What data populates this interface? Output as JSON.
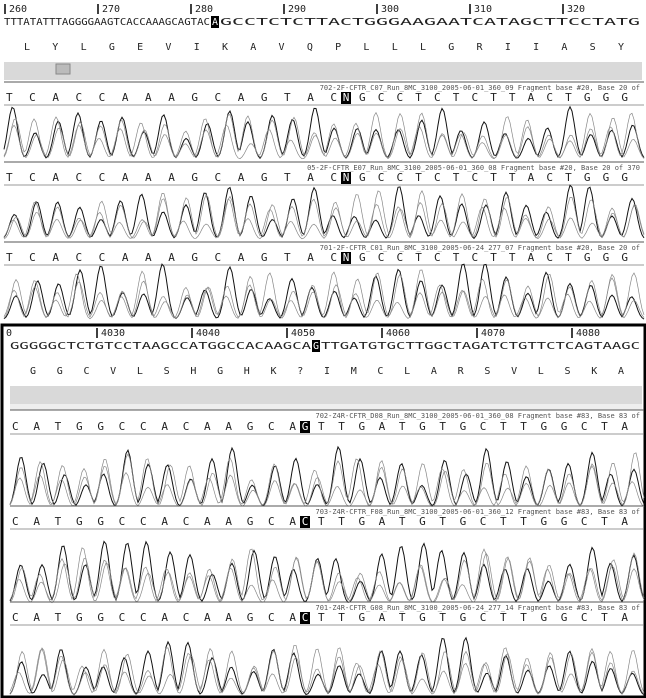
{
  "panels": [
    {
      "ruler": [
        "260",
        "270",
        "280",
        "290",
        "300",
        "310",
        "320"
      ],
      "reference_before": "TTTATATTTAGGGGAAGTCACCAAAGCAGTAC",
      "reference_highlight": "A",
      "reference_after": "GCCTCTCTTACTGGGAAGAATCATAGCTTCCTATG",
      "translation": "L Y L G E V I K A V Q P L L L G R I I A S Y",
      "traces": [
        {
          "label": "702-2F-CFTR_C07_Run_8MC_3100_2005-06-01_360_09 Fragment base #20, Base 20 of",
          "calls_before": "TCACCAAAGCAGTAC",
          "highlight": "N",
          "calls_after": "GCCTCTCTTACTGGG"
        },
        {
          "label": "05-2F-CFTR_E07_Run_8MC_3100_2005-06-01_360_08 Fragment base #20, Base 20 of 370",
          "calls_before": "TCACCAAAGCAGTAC",
          "highlight": "N",
          "calls_after": "GCCTCTCTTACTGGG"
        },
        {
          "label": "701-2F-CFTR_C01_Run_8MC_3100_2005-06-24_277_07 Fragment base #20, Base 20 of",
          "calls_before": "TCACCAAAGCAGTAC",
          "highlight": "N",
          "calls_after": "GCCTCTCTTACTGGG"
        }
      ]
    },
    {
      "ruler": [
        "0",
        "4030",
        "4040",
        "4050",
        "4060",
        "4070",
        "4080"
      ],
      "reference_before": "GGGGGCTCTGTCCTAAGCCATGGCCACAAGCA",
      "reference_highlight": "G",
      "reference_after": "TTGATGTGCTTGGCTAGATCTGTTCTCAGTAAGC",
      "translation": "G G C V L S H G H K ? I M C L A R S V L S K A",
      "traces": [
        {
          "label": "702-Z4R-CFTR_D08_Run_8MC_3100_2005-06-01_360_08 Fragment base #83, Base 83 of",
          "calls_before": "CATGGCCACAAGCA",
          "highlight": "G",
          "calls_after": "TTGATGTGCTTGGCTA"
        },
        {
          "label": "703-Z4R-CFTR_F08_Run_8MC_3100_2005-06-01_360_12 Fragment base #83, Base 83 of",
          "calls_before": "CATGGCCACAAGCA",
          "highlight": "C",
          "calls_after": "TTGATGTGCTTGGCTA"
        },
        {
          "label": "701-Z4R-CFTR_G08_Run_8MC_3100_2005-06-24_277_14 Fragment base #83, Base 83 of",
          "calls_before": "CATGGCCACAAGCA",
          "highlight": "C",
          "calls_after": "TTGATGTGCTTGGCTA"
        }
      ]
    }
  ]
}
